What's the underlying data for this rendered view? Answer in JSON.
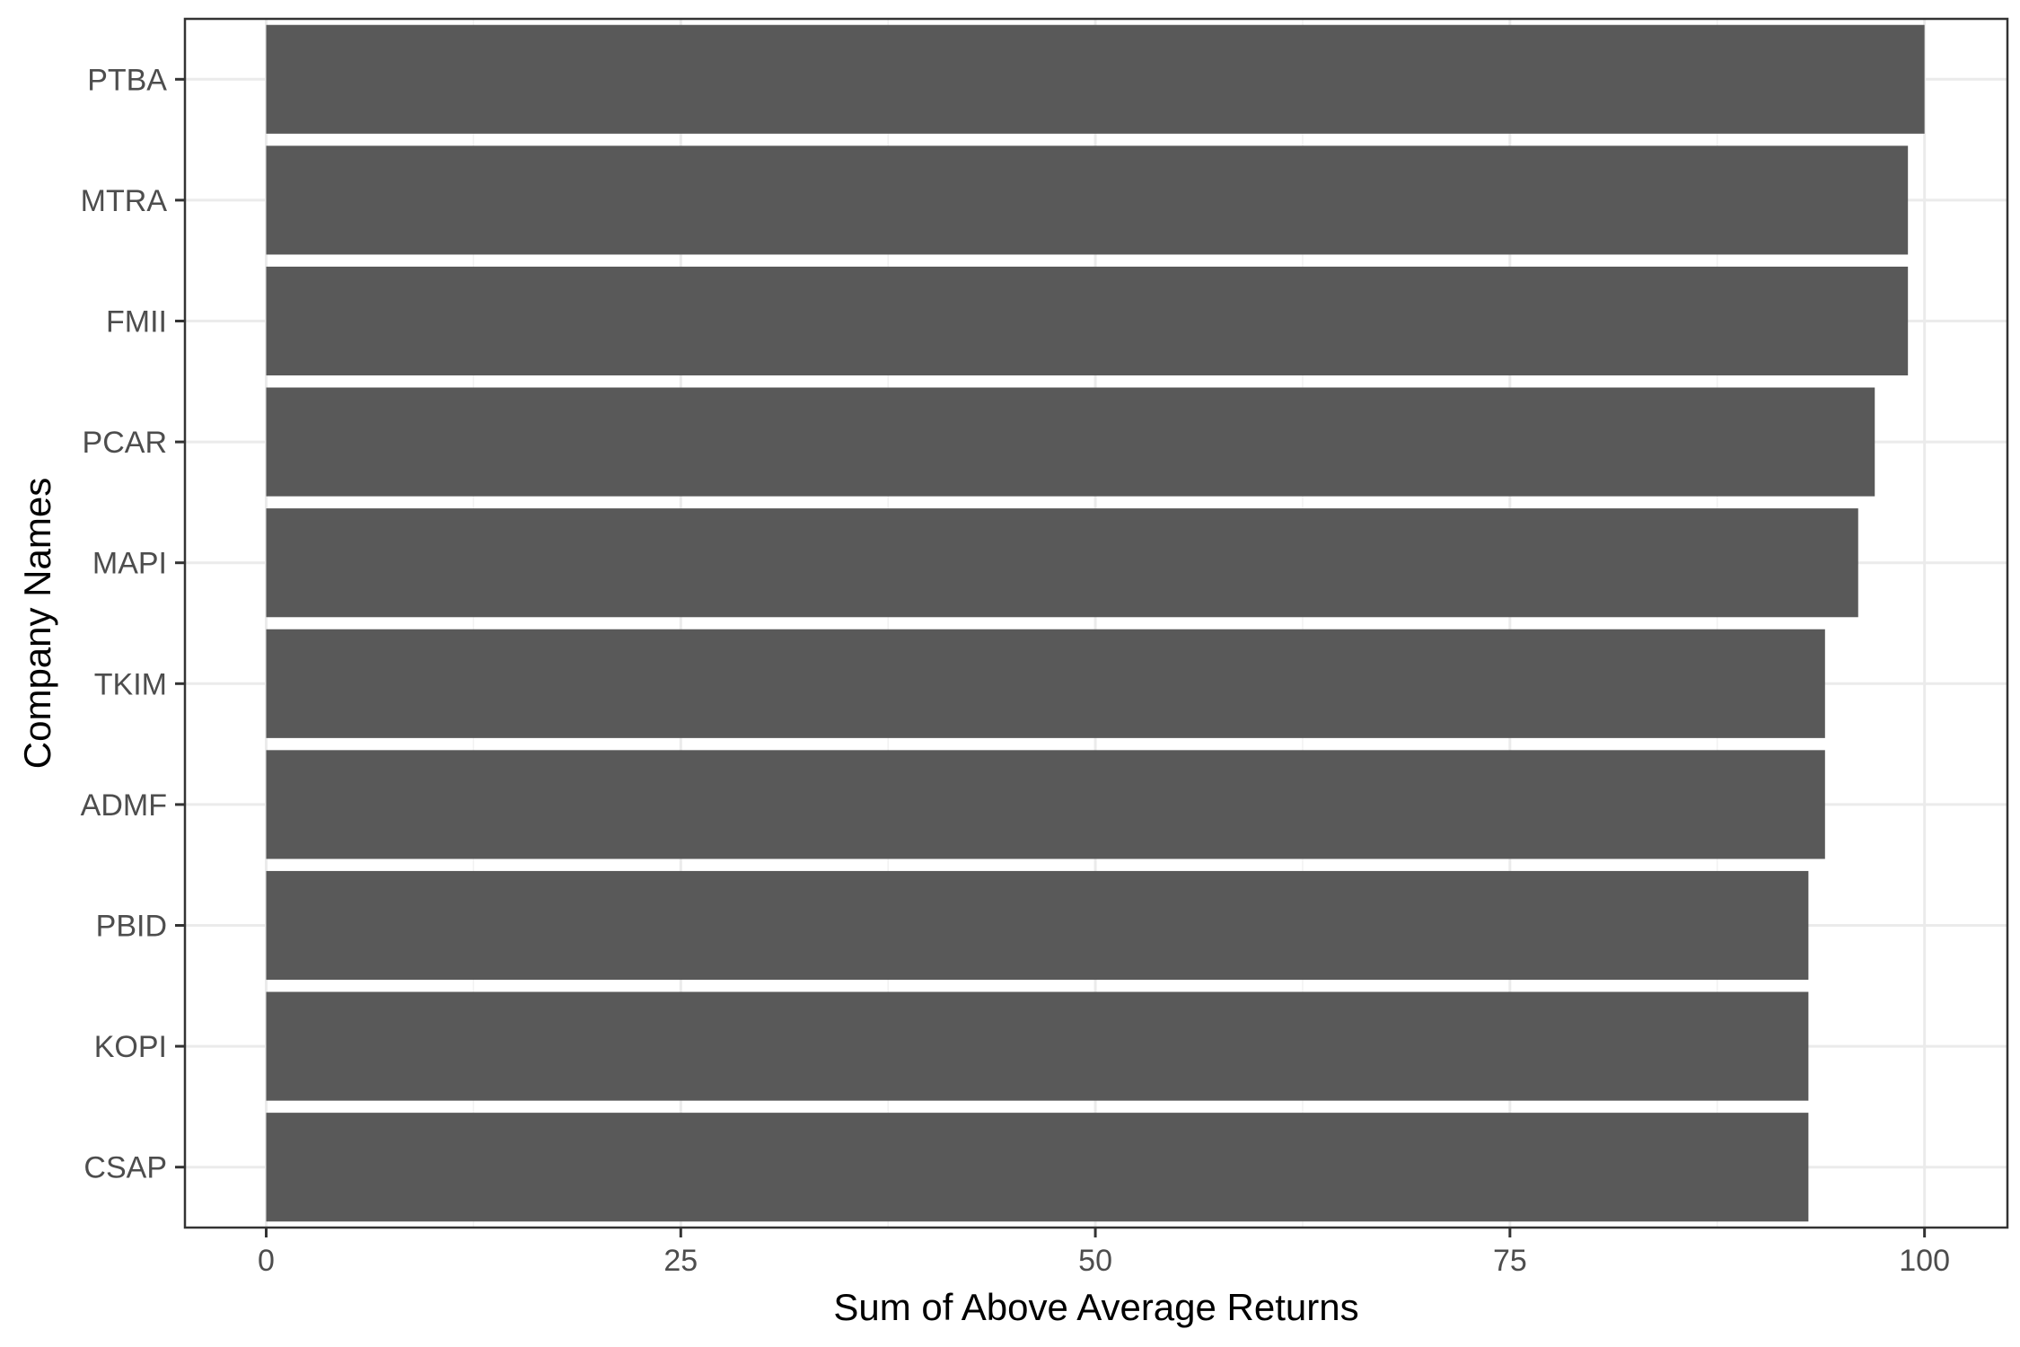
{
  "chart_data": {
    "type": "bar",
    "orientation": "horizontal",
    "categories": [
      "PTBA",
      "MTRA",
      "FMII",
      "PCAR",
      "MAPI",
      "TKIM",
      "ADMF",
      "PBID",
      "KOPI",
      "CSAP"
    ],
    "values": [
      100,
      99,
      99,
      97,
      96,
      94,
      94,
      93,
      93,
      93
    ],
    "title": "",
    "xlabel": "Sum of Above Average Returns",
    "ylabel": "Company Names",
    "xlim": [
      -4.9,
      105
    ],
    "xticks": [
      0,
      25,
      50,
      75,
      100
    ],
    "xtick_labels": [
      "0",
      "25",
      "50",
      "75",
      "100"
    ],
    "grid": true,
    "legend": "none",
    "colors": {
      "bar": "#595959",
      "background": "#ffffff",
      "grid_major": "#ebebeb",
      "grid_minor": "#f2f2f2",
      "border": "#333333",
      "tick_text": "#4d4d4d",
      "title_text": "#000000"
    }
  }
}
